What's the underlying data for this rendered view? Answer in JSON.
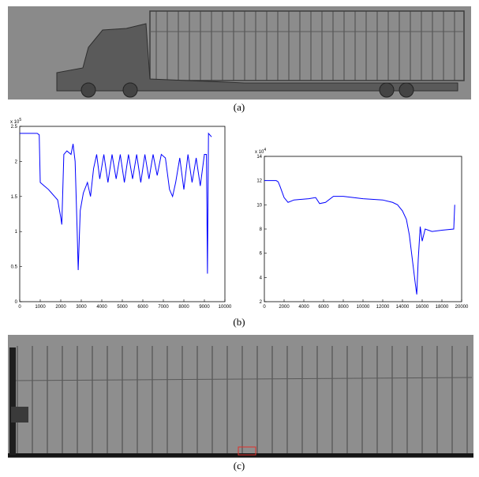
{
  "captions": [
    "(a)",
    "(b)",
    "(c)"
  ],
  "chart_data": [
    {
      "type": "line",
      "y_scale_label": "x 10",
      "y_scale_exponent": "5",
      "color": "#0000ff",
      "xlim": [
        0,
        10000
      ],
      "ylim": [
        0,
        2.5
      ],
      "xticks": [
        0,
        1000,
        2000,
        3000,
        4000,
        5000,
        6000,
        7000,
        8000,
        9000,
        10000
      ],
      "yticks": [
        0,
        0.5,
        1,
        1.5,
        2,
        2.5
      ],
      "x": [
        0,
        850,
        950,
        1000,
        1200,
        1400,
        1550,
        1700,
        1850,
        2000,
        2050,
        2150,
        2300,
        2500,
        2600,
        2700,
        2800,
        2850,
        2950,
        3100,
        3300,
        3450,
        3600,
        3750,
        3900,
        4100,
        4300,
        4500,
        4700,
        4900,
        5100,
        5300,
        5500,
        5700,
        5900,
        6100,
        6300,
        6500,
        6700,
        6900,
        7100,
        7300,
        7450,
        7600,
        7800,
        8000,
        8200,
        8400,
        8600,
        8800,
        9000,
        9100,
        9150,
        9200,
        9350
      ],
      "values": [
        2.4,
        2.4,
        2.38,
        1.7,
        1.65,
        1.6,
        1.55,
        1.5,
        1.45,
        1.2,
        1.1,
        2.1,
        2.15,
        2.1,
        2.25,
        2.0,
        1.0,
        0.45,
        1.3,
        1.55,
        1.7,
        1.5,
        1.9,
        2.1,
        1.75,
        2.1,
        1.7,
        2.1,
        1.75,
        2.1,
        1.7,
        2.1,
        1.75,
        2.1,
        1.7,
        2.1,
        1.75,
        2.1,
        1.8,
        2.1,
        2.05,
        1.6,
        1.5,
        1.7,
        2.05,
        1.6,
        2.1,
        1.7,
        2.05,
        1.65,
        2.1,
        2.1,
        0.4,
        2.4,
        2.35
      ]
    },
    {
      "type": "line",
      "y_scale_label": "x 10",
      "y_scale_exponent": "4",
      "color": "#0000ff",
      "xlim": [
        0,
        20000
      ],
      "ylim": [
        2,
        14
      ],
      "xticks": [
        0,
        2000,
        4000,
        6000,
        8000,
        10000,
        12000,
        14000,
        16000,
        18000,
        20000
      ],
      "yticks": [
        2,
        4,
        6,
        8,
        10,
        12,
        14
      ],
      "x": [
        0,
        1200,
        1400,
        1600,
        2000,
        2400,
        3000,
        4500,
        5200,
        5600,
        6200,
        7000,
        8000,
        10000,
        12000,
        13000,
        13500,
        14000,
        14400,
        14700,
        15000,
        15300,
        15450,
        15600,
        15800,
        16000,
        16300,
        17000,
        18000,
        19200,
        19300
      ],
      "values": [
        12,
        12,
        11.9,
        11.5,
        10.6,
        10.2,
        10.4,
        10.5,
        10.6,
        10.1,
        10.2,
        10.7,
        10.7,
        10.5,
        10.4,
        10.2,
        10.0,
        9.5,
        8.8,
        7.5,
        5.5,
        3.5,
        2.6,
        5.5,
        8.2,
        7.0,
        8.0,
        7.8,
        7.9,
        8.0,
        10
      ]
    }
  ]
}
